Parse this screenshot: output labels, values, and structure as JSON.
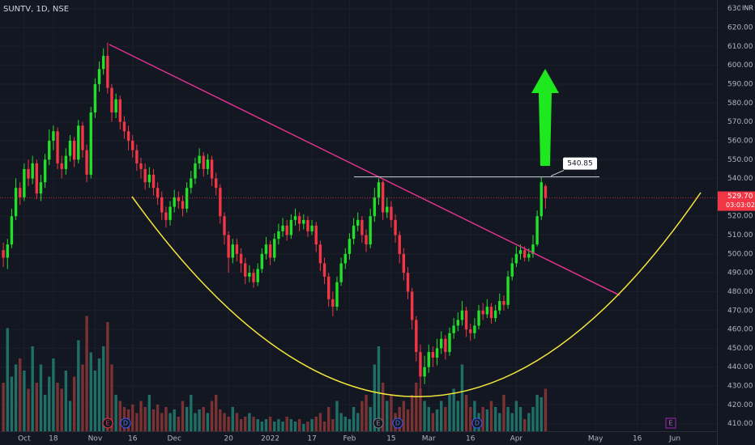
{
  "chart_data": {
    "type": "candlestick",
    "title": "SUNTV, 1D, NSE",
    "currency": "INR",
    "up_color": "#22e02a",
    "down_color": "#f23645",
    "volume_up_color": "#1f6f66",
    "volume_down_color": "#7a3232",
    "xlim": [
      -0.8,
      171.1
    ],
    "xticks": [
      {
        "value": 5,
        "label": "Oct"
      },
      {
        "value": 12,
        "label": "18"
      },
      {
        "value": 22,
        "label": "Nov"
      },
      {
        "value": 31,
        "label": "16"
      },
      {
        "value": 41,
        "label": "Dec"
      },
      {
        "value": 54,
        "label": "20"
      },
      {
        "value": 64,
        "label": "2022"
      },
      {
        "value": 74,
        "label": "17"
      },
      {
        "value": 83,
        "label": "Feb"
      },
      {
        "value": 93,
        "label": "15"
      },
      {
        "value": 102,
        "label": "Mar"
      },
      {
        "value": 112,
        "label": "16"
      },
      {
        "value": 123,
        "label": "Apr"
      },
      {
        "value": 142,
        "label": "May"
      },
      {
        "value": 152,
        "label": "16"
      },
      {
        "value": 161,
        "label": "Jun"
      }
    ],
    "ylim": [
      403,
      634.6
    ],
    "yticks": [
      {
        "value": 410,
        "label": "410.00"
      },
      {
        "value": 420,
        "label": "420.00"
      },
      {
        "value": 430,
        "label": "430.00"
      },
      {
        "value": 440,
        "label": "440.00"
      },
      {
        "value": 450,
        "label": "450.00"
      },
      {
        "value": 460,
        "label": "460.00"
      },
      {
        "value": 470,
        "label": "470.00"
      },
      {
        "value": 480,
        "label": "480.00"
      },
      {
        "value": 490,
        "label": "490.00"
      },
      {
        "value": 500,
        "label": "500.00"
      },
      {
        "value": 510,
        "label": "510.00"
      },
      {
        "value": 520,
        "label": "520.00"
      },
      {
        "value": 540,
        "label": "540.00"
      },
      {
        "value": 550,
        "label": "550.00"
      },
      {
        "value": 560,
        "label": "560.00"
      },
      {
        "value": 570,
        "label": "570.00"
      },
      {
        "value": 580,
        "label": "580.00"
      },
      {
        "value": 590,
        "label": "590.00"
      },
      {
        "value": 600,
        "label": "600.00"
      },
      {
        "value": 610,
        "label": "610.00"
      },
      {
        "value": 620,
        "label": "620.00"
      },
      {
        "value": 630,
        "label": "630.00"
      }
    ],
    "grid": true,
    "volume_lim": [
      0,
      100
    ],
    "open": [
      502,
      498,
      505,
      520,
      535,
      530,
      545,
      540,
      548,
      532,
      538,
      550,
      560,
      565,
      548,
      545,
      552,
      560,
      550,
      568,
      555,
      542,
      575,
      590,
      598,
      605,
      588,
      575,
      582,
      570,
      565,
      560,
      555,
      548,
      545,
      538,
      542,
      535,
      530,
      522,
      518,
      525,
      530,
      528,
      524,
      535,
      540,
      548,
      552,
      545,
      550,
      540,
      535,
      520,
      510,
      498,
      505,
      500,
      495,
      488,
      490,
      485,
      492,
      500,
      505,
      498,
      508,
      512,
      515,
      510,
      518,
      520,
      516,
      518,
      512,
      515,
      505,
      495,
      488,
      476,
      472,
      485,
      495,
      500,
      508,
      515,
      518,
      510,
      505,
      520,
      530,
      538,
      522,
      525,
      518,
      510,
      500,
      490,
      480,
      465,
      448,
      435,
      440,
      448,
      445,
      450,
      455,
      448,
      458,
      462,
      465,
      470,
      460,
      458,
      462,
      470,
      468,
      472,
      466,
      470,
      475,
      473,
      488,
      495,
      500,
      502,
      498,
      500,
      505,
      520,
      536
    ],
    "high": [
      506,
      508,
      524,
      540,
      538,
      548,
      550,
      552,
      550,
      542,
      553,
      566,
      568,
      567,
      552,
      556,
      563,
      562,
      571,
      570,
      558,
      578,
      593,
      602,
      609,
      612,
      590,
      585,
      584,
      573,
      568,
      563,
      558,
      551,
      548,
      546,
      545,
      538,
      533,
      525,
      528,
      534,
      533,
      531,
      538,
      544,
      551,
      556,
      554,
      553,
      552,
      543,
      537,
      522,
      512,
      508,
      508,
      503,
      498,
      494,
      492,
      495,
      503,
      509,
      507,
      511,
      516,
      519,
      518,
      521,
      524,
      522,
      521,
      520,
      518,
      517,
      507,
      498,
      490,
      480,
      488,
      498,
      503,
      511,
      519,
      522,
      520,
      513,
      524,
      535,
      540,
      539,
      530,
      528,
      521,
      512,
      503,
      493,
      482,
      467,
      452,
      446,
      452,
      451,
      455,
      459,
      457,
      461,
      466,
      469,
      475,
      472,
      463,
      466,
      473,
      474,
      476,
      474,
      473,
      479,
      478,
      491,
      498,
      504,
      505,
      504,
      503,
      510,
      523,
      540.85,
      537
    ],
    "low": [
      493,
      492,
      503,
      518,
      526,
      528,
      536,
      537,
      529,
      528,
      535,
      547,
      555,
      545,
      540,
      542,
      549,
      546,
      548,
      551,
      538,
      540,
      572,
      586,
      595,
      585,
      570,
      572,
      566,
      561,
      555,
      551,
      544,
      540,
      534,
      535,
      531,
      526,
      518,
      514,
      515,
      522,
      524,
      520,
      522,
      532,
      537,
      545,
      541,
      542,
      536,
      531,
      516,
      505,
      490,
      495,
      496,
      490,
      484,
      485,
      482,
      483,
      490,
      497,
      494,
      496,
      505,
      509,
      507,
      508,
      515,
      512,
      513,
      509,
      510,
      501,
      491,
      484,
      472,
      467,
      470,
      483,
      492,
      497,
      505,
      512,
      506,
      501,
      503,
      517,
      526,
      518,
      519,
      514,
      506,
      495,
      486,
      476,
      460,
      443,
      428,
      431,
      437,
      440,
      441,
      447,
      444,
      446,
      455,
      459,
      462,
      456,
      454,
      455,
      460,
      465,
      466,
      463,
      464,
      468,
      470,
      471,
      486,
      493,
      497,
      496,
      496,
      498,
      504,
      518,
      524
    ],
    "close": [
      498,
      505,
      520,
      535,
      530,
      545,
      540,
      548,
      532,
      538,
      550,
      560,
      565,
      548,
      545,
      552,
      560,
      550,
      568,
      555,
      542,
      575,
      590,
      598,
      605,
      588,
      575,
      582,
      570,
      565,
      560,
      555,
      548,
      545,
      538,
      542,
      535,
      530,
      522,
      518,
      525,
      530,
      528,
      524,
      535,
      540,
      548,
      552,
      545,
      550,
      540,
      535,
      520,
      510,
      498,
      505,
      500,
      495,
      488,
      490,
      485,
      492,
      500,
      505,
      498,
      508,
      512,
      515,
      510,
      518,
      520,
      516,
      518,
      512,
      515,
      505,
      495,
      488,
      476,
      472,
      485,
      495,
      500,
      508,
      515,
      518,
      510,
      505,
      520,
      530,
      538,
      522,
      525,
      518,
      510,
      500,
      490,
      480,
      465,
      448,
      435,
      440,
      448,
      445,
      450,
      455,
      448,
      458,
      462,
      465,
      470,
      460,
      458,
      462,
      470,
      468,
      472,
      466,
      470,
      475,
      473,
      488,
      495,
      500,
      502,
      498,
      500,
      505,
      520,
      538,
      529.7
    ],
    "volume": [
      40,
      85,
      45,
      55,
      60,
      50,
      35,
      70,
      40,
      55,
      30,
      45,
      60,
      40,
      35,
      50,
      25,
      45,
      75,
      55,
      95,
      65,
      50,
      60,
      70,
      90,
      55,
      30,
      25,
      20,
      18,
      22,
      15,
      25,
      20,
      30,
      18,
      22,
      15,
      20,
      15,
      18,
      12,
      25,
      20,
      30,
      15,
      18,
      20,
      15,
      25,
      30,
      18,
      15,
      12,
      20,
      15,
      10,
      12,
      15,
      12,
      10,
      8,
      10,
      12,
      8,
      10,
      8,
      12,
      10,
      8,
      10,
      6,
      8,
      10,
      12,
      15,
      8,
      20,
      10,
      25,
      15,
      12,
      10,
      20,
      15,
      25,
      30,
      20,
      55,
      70,
      40,
      25,
      30,
      15,
      20,
      25,
      18,
      30,
      40,
      35,
      25,
      20,
      15,
      18,
      25,
      20,
      30,
      35,
      25,
      55,
      30,
      20,
      25,
      15,
      20,
      18,
      25,
      20,
      15,
      30,
      20,
      15,
      25,
      20,
      10,
      15,
      20,
      30,
      28,
      35
    ],
    "level": 540.85,
    "last_price_label": "529.70",
    "countdown": "03:03:02",
    "events": [
      "E",
      "D",
      "E",
      "D",
      "D",
      "E"
    ]
  }
}
